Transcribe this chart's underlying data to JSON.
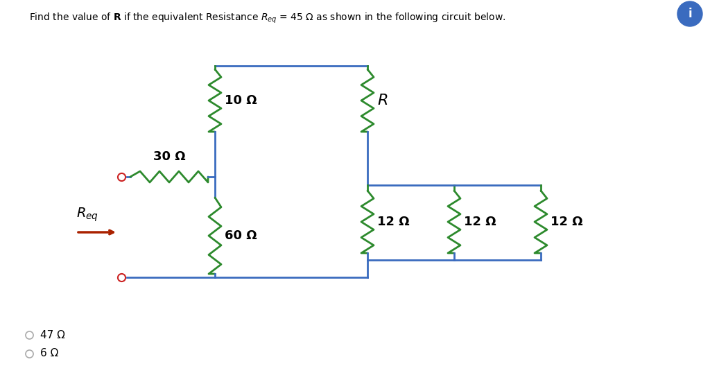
{
  "bg_color": "#ffffff",
  "circuit_color": "#3a6bbf",
  "resistor_color": "#2d8a2d",
  "text_color": "#000000",
  "req_arrow_color": "#aa2200",
  "terminal_color": "#cc2222",
  "title": "Find the value of R if the equivalent Resistance R_eq = 45 Ω as shown in the following circuit below.",
  "answer_options": [
    "47 Ω",
    "6 Ω"
  ],
  "labels": {
    "R30": "30 Ω",
    "R10": "10 Ω",
    "R60": "60 Ω",
    "R12a": "12 Ω",
    "R12b": "12 Ω",
    "R12c": "12 Ω",
    "RR": "R"
  }
}
